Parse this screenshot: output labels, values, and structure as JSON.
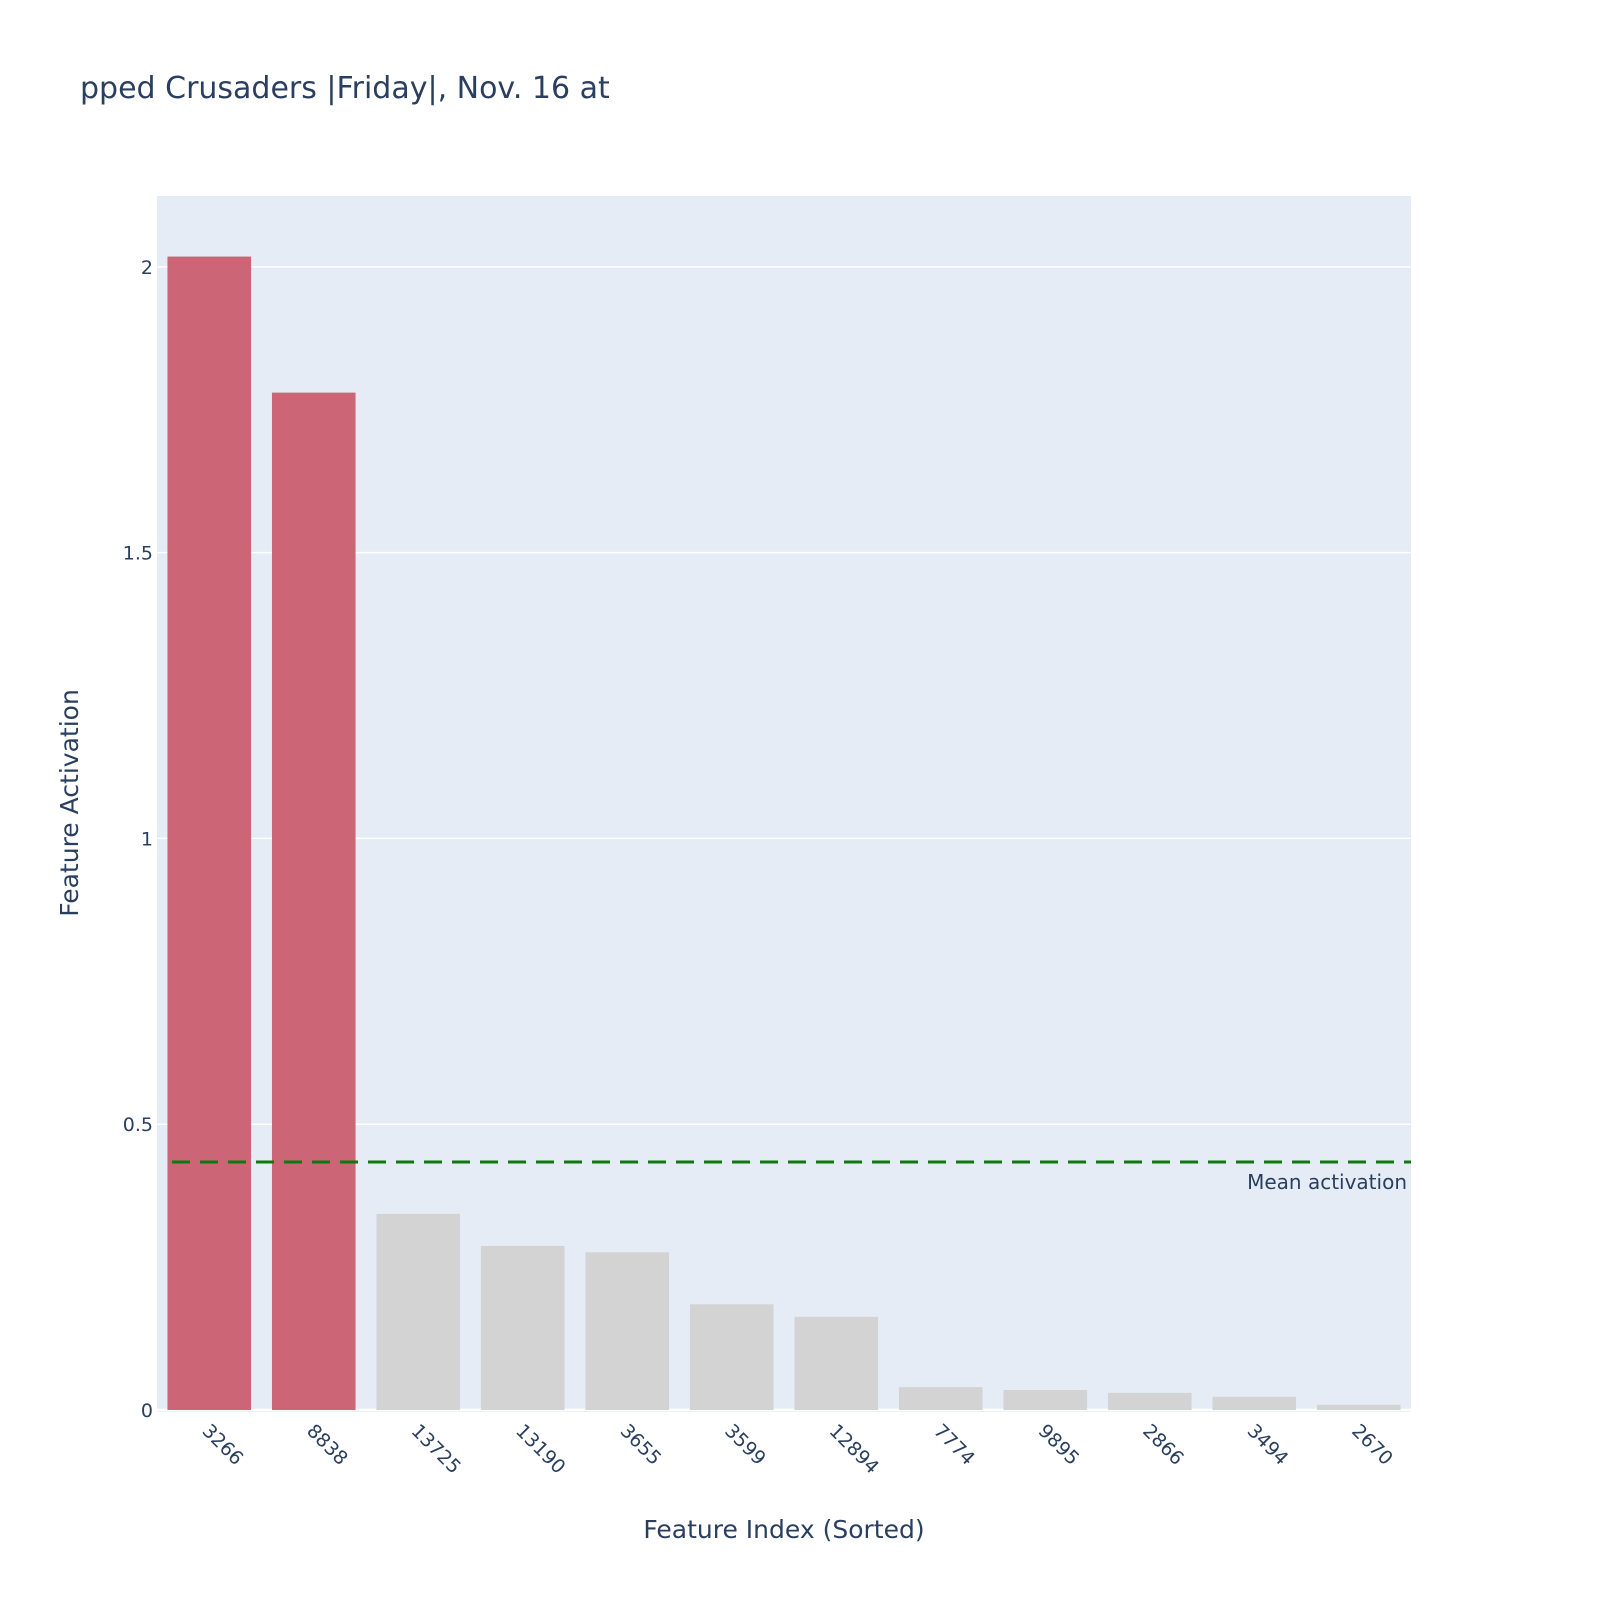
{
  "chart_data": {
    "type": "bar",
    "title": "pped Crusaders  |Friday|, Nov. 16 at",
    "xlabel": "Feature Index (Sorted)",
    "ylabel": "Feature Activation",
    "categories": [
      "3266",
      "8838",
      "13725",
      "13190",
      "3655",
      "3599",
      "12894",
      "7774",
      "9895",
      "2866",
      "3494",
      "2670"
    ],
    "values": [
      2.018,
      1.78,
      0.343,
      0.287,
      0.276,
      0.185,
      0.163,
      0.04,
      0.035,
      0.03,
      0.023,
      0.009
    ],
    "highlighted": [
      true,
      true,
      false,
      false,
      false,
      false,
      false,
      false,
      false,
      false,
      false,
      false
    ],
    "colors": {
      "highlight": "#cc6677",
      "normal": "#d3d3d3",
      "background": "#e5ecf6",
      "grid": "#ffffff",
      "mean_line": "#117711",
      "text": "#2a3f5f"
    },
    "ylim": [
      0,
      2.124
    ],
    "yticks": [
      0,
      0.5,
      1,
      1.5,
      2
    ],
    "ytick_labels": [
      "0",
      "0.5",
      "1",
      "1.5",
      "2"
    ],
    "grid": true,
    "mean_line": {
      "value": 0.434,
      "label": "Mean activation"
    }
  }
}
